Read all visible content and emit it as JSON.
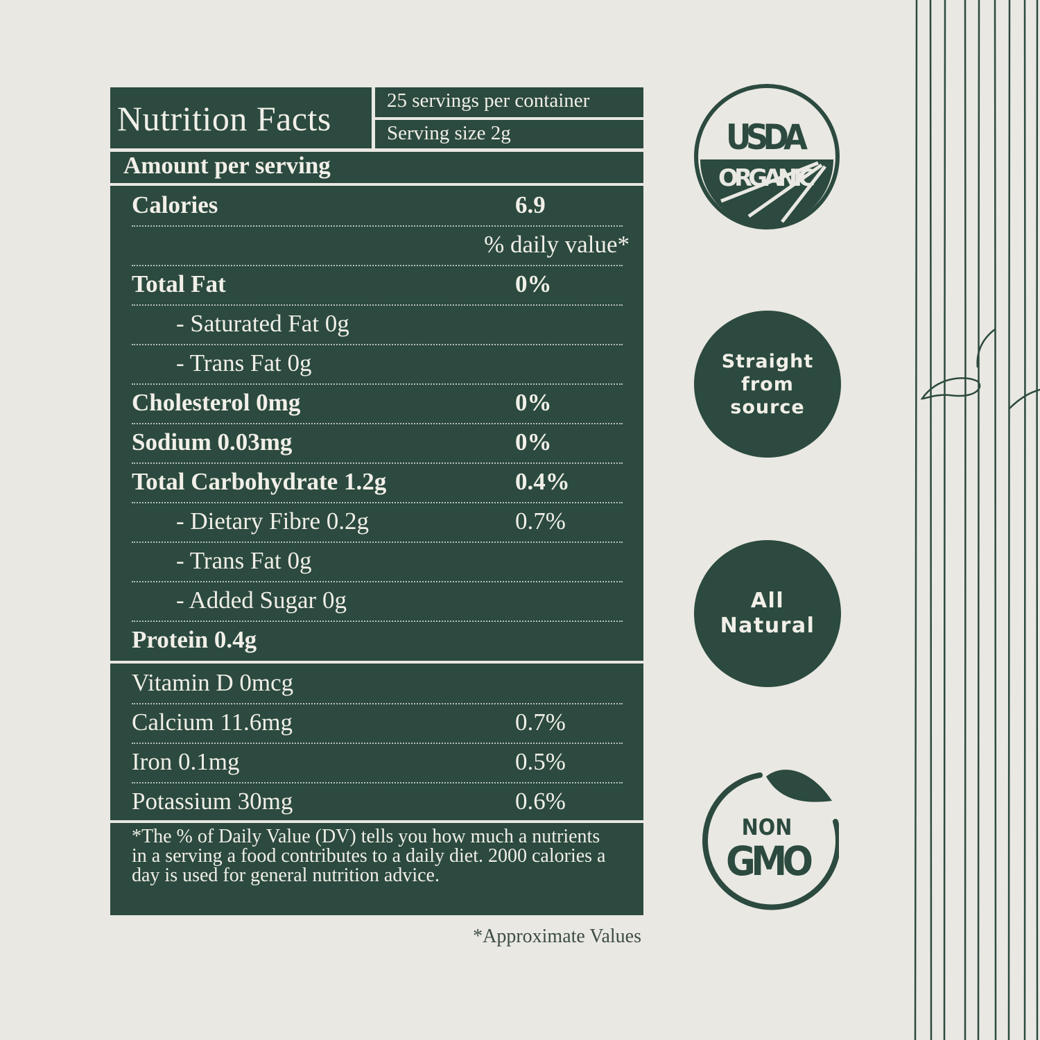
{
  "label": {
    "title": "Nutrition Facts",
    "servings_per_container": "25 servings per container",
    "serving_size": "Serving size 2g",
    "amount_per_serving": "Amount per serving",
    "rows": [
      {
        "label": "Calories",
        "value": "6.9",
        "style": "bold"
      },
      {
        "label": "% daily value*",
        "value": "",
        "style": "dv"
      },
      {
        "label": "Total Fat",
        "value": "0%",
        "style": "bold"
      },
      {
        "label": "- Saturated Fat 0g",
        "value": "",
        "style": "sub"
      },
      {
        "label": "- Trans Fat 0g",
        "value": "",
        "style": "sub"
      },
      {
        "label": "Cholesterol 0mg",
        "value": "0%",
        "style": "bold"
      },
      {
        "label": "Sodium 0.03mg",
        "value": "0%",
        "style": "bold"
      },
      {
        "label": "Total Carbohydrate 1.2g",
        "value": "0.4%",
        "style": "bold"
      },
      {
        "label": "- Dietary Fibre 0.2g",
        "value": "0.7%",
        "style": "sub"
      },
      {
        "label": "- Trans Fat 0g",
        "value": "",
        "style": "sub"
      },
      {
        "label": "- Added Sugar 0g",
        "value": "",
        "style": "sub"
      },
      {
        "label": "Protein 0.4g",
        "value": "",
        "style": "bold"
      }
    ],
    "vitamins": [
      {
        "label": "Vitamin D 0mcg",
        "value": ""
      },
      {
        "label": "Calcium 11.6mg",
        "value": "0.7%"
      },
      {
        "label": "Iron 0.1mg",
        "value": "0.5%"
      },
      {
        "label": "Potassium 30mg",
        "value": "0.6%"
      }
    ],
    "footnote": "*The % of Daily Value (DV) tells you how much a nutrients in a serving a food contributes to a daily diet. 2000 calories a day is used for general nutrition advice.",
    "approximate_note": "*Approximate Values"
  },
  "badges": {
    "usda_top": "USDA",
    "usda_bottom": "ORGANIC",
    "straight": [
      "Straight",
      "from",
      "source"
    ],
    "natural": [
      "All",
      "Natural"
    ],
    "non_gmo_top": "NON",
    "non_gmo_bottom": "GMO"
  },
  "colors": {
    "brand_green": "#2c4a3f",
    "background": "#e9e8e2",
    "text_light": "#f1efe8"
  }
}
